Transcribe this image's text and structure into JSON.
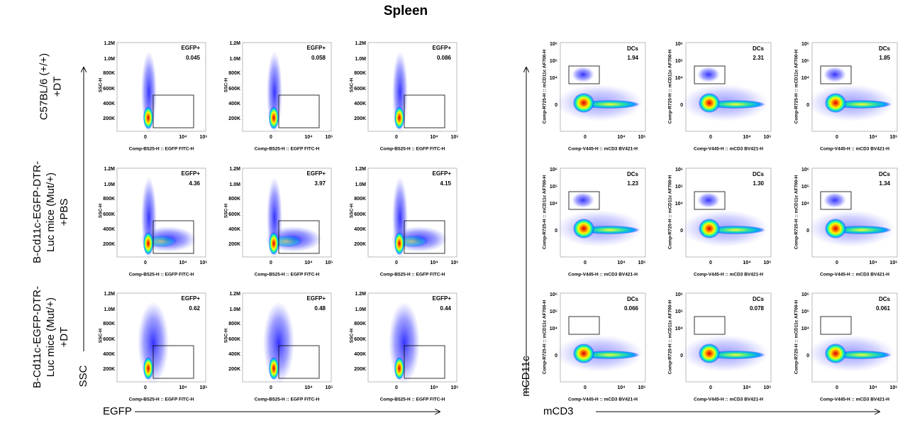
{
  "title": "Spleen",
  "egfp_group": {
    "row_labels": [
      [
        "C57BL/6 (+/+)",
        "+DT"
      ],
      [
        "B-Cd11c-EGFP-DTR-",
        "Luc mice (Mut/+)",
        "+PBS"
      ],
      [
        "B-Cd11c-EGFP-DTR-",
        "Luc mice (Mut/+)",
        "+DT"
      ]
    ],
    "y_axis": "SSC",
    "x_axis": "EGFP",
    "panel_y_title": "SSC-H",
    "panel_x_title": "Comp-B525-H :: EGFP FITC-H",
    "y_ticks": [
      "1.2M",
      "1.0M",
      "800K",
      "600K",
      "400K",
      "200K"
    ],
    "x_ticks": [
      "0",
      "10⁴",
      "10⁵"
    ],
    "gate": "EGFP+",
    "values": [
      [
        "0.045",
        "0.058",
        "0.086"
      ],
      [
        "4.36",
        "3.97",
        "4.15"
      ],
      [
        "0.62",
        "0.48",
        "0.44"
      ]
    ]
  },
  "dc_group": {
    "y_axis": "mCD11c",
    "x_axis": "mCD3",
    "panel_y_title": "Comp-R725-H :: mCD11c AF700-H",
    "panel_x_title": "Comp-V445-H :: mCD3 BV421-H",
    "y_ticks": [
      "10⁶",
      "10⁵",
      "10⁴",
      "0"
    ],
    "x_ticks": [
      "0",
      "10⁴",
      "10⁵"
    ],
    "gate": "DCs",
    "values": [
      [
        "1.94",
        "2.31",
        "1.85"
      ],
      [
        "1.23",
        "1.30",
        "1.34"
      ],
      [
        "0.066",
        "0.078",
        "0.061"
      ]
    ]
  }
}
